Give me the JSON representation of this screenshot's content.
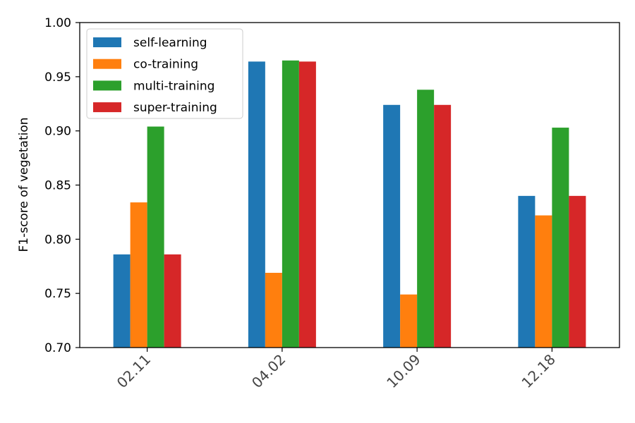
{
  "chart_data": {
    "type": "bar",
    "title": "",
    "xlabel": "",
    "ylabel": "F1-score of vegetation",
    "categories": [
      "02.11",
      "04.02",
      "10.09",
      "12.18"
    ],
    "ylim": [
      0.7,
      1.0
    ],
    "yticks": [
      "0.70",
      "0.75",
      "0.80",
      "0.85",
      "0.90",
      "0.95",
      "1.00"
    ],
    "yticks_values": [
      0.7,
      0.75,
      0.8,
      0.85,
      0.9,
      0.95,
      1.0
    ],
    "grid": false,
    "legend_position": "top-left",
    "series": [
      {
        "name": "self-learning",
        "color": "#1f77b4",
        "values": [
          0.786,
          0.964,
          0.924,
          0.84
        ]
      },
      {
        "name": "co-training",
        "color": "#ff7f0e",
        "values": [
          0.834,
          0.769,
          0.749,
          0.822
        ]
      },
      {
        "name": "multi-training",
        "color": "#2ca02c",
        "values": [
          0.904,
          0.965,
          0.938,
          0.903
        ]
      },
      {
        "name": "super-training",
        "color": "#d62728",
        "values": [
          0.786,
          0.964,
          0.924,
          0.84
        ]
      }
    ]
  }
}
